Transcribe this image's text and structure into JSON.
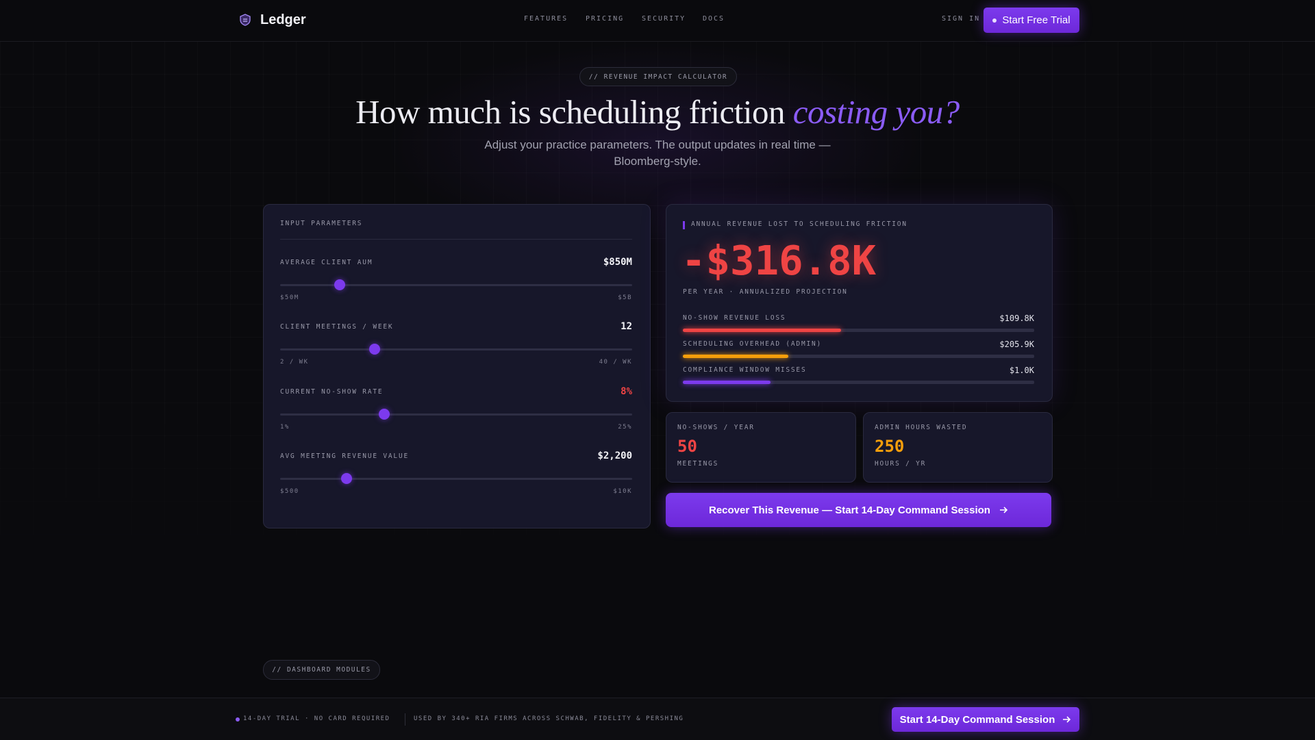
{
  "nav": {
    "brand": "Ledger",
    "links": [
      "FEATURES",
      "PRICING",
      "SECURITY",
      "DOCS"
    ],
    "sign_in": "SIGN IN",
    "cta": "Start Free Trial"
  },
  "hero": {
    "badge": "// REVENUE IMPACT CALCULATOR",
    "title": "How much is scheduling friction",
    "title_accent": "costing you?",
    "subtitle": "Adjust your practice parameters. The output updates in real time — Bloomberg-style."
  },
  "inputs": {
    "title": "INPUT PARAMETERS",
    "sliders": [
      {
        "label": "AVERAGE CLIENT AUM",
        "value": "$850M",
        "min": "$50M",
        "max": "$5B"
      },
      {
        "label": "CLIENT MEETINGS / WEEK",
        "value": "12",
        "min": "2 / WK",
        "max": "40 / WK"
      },
      {
        "label": "CURRENT NO-SHOW RATE",
        "value": "8%",
        "min": "1%",
        "max": "25%"
      },
      {
        "label": "AVG MEETING REVENUE VALUE",
        "value": "$2,200",
        "min": "$500",
        "max": "$10K"
      }
    ]
  },
  "output": {
    "title": "ANNUAL REVENUE LOST TO SCHEDULING FRICTION",
    "total": "-$316.8K",
    "caption": "PER YEAR · ANNUALIZED PROJECTION",
    "breakdown": [
      {
        "label": "NO-SHOW REVENUE LOSS",
        "value": "$109.8K"
      },
      {
        "label": "SCHEDULING OVERHEAD (ADMIN)",
        "value": "$205.9K"
      },
      {
        "label": "COMPLIANCE WINDOW MISSES",
        "value": "$1.0K"
      }
    ]
  },
  "stats": [
    {
      "label": "NO-SHOWS / YEAR",
      "value": "50",
      "unit": "MEETINGS"
    },
    {
      "label": "ADMIN HOURS WASTED",
      "value": "250",
      "unit": "HOURS / YR"
    }
  ],
  "cta": "Recover This Revenue — Start 14-Day Command Session",
  "modules": {
    "badge": "// DASHBOARD MODULES"
  },
  "footer_bar": {
    "trial": "14-DAY TRIAL · NO CARD REQUIRED",
    "social_proof": "USED BY 340+ RIA FIRMS ACROSS SCHWAB, FIDELITY & PERSHING",
    "cta": "Start 14-Day Command Session"
  }
}
